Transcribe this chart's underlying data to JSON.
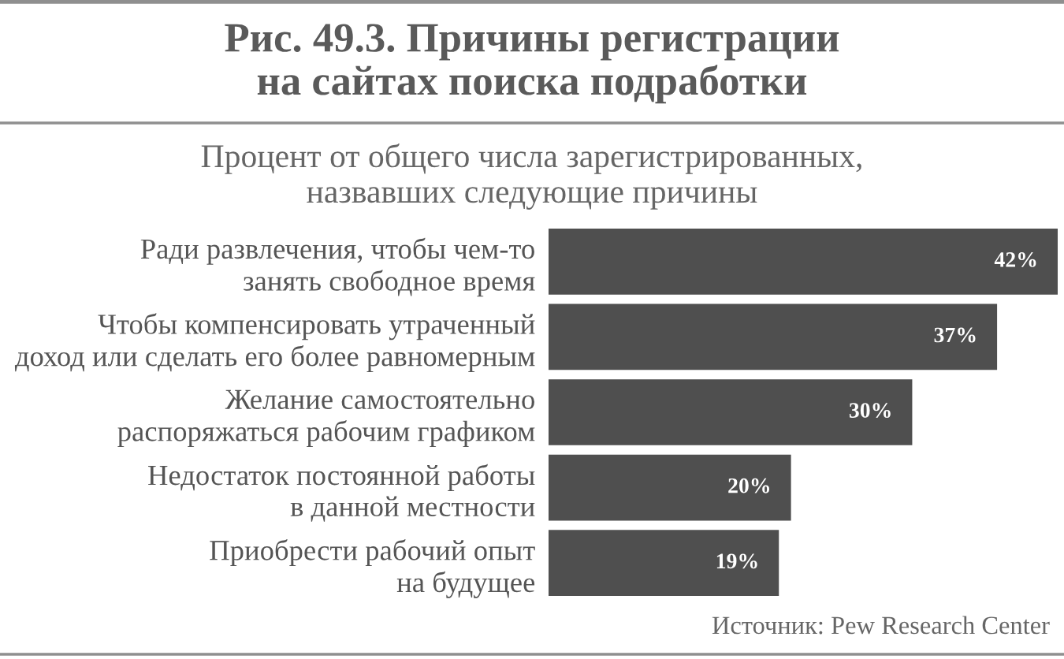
{
  "chart_data": {
    "type": "bar",
    "orientation": "horizontal",
    "title": "Рис. 49.3. Причины регистрации\nна сайтах поиска подработки",
    "subtitle": "Процент от общего числа зарегистрированных,\nназвавших следующие причины",
    "categories": [
      "Ради развлечения, чтобы чем-то\nзанять свободное время",
      "Чтобы компенсировать утраченный\nдоход или сделать его более равномерным",
      "Желание самостоятельно\nраспоряжаться рабочим графиком",
      "Недостаток постоянной работы\nв данной местности",
      "Приобрести рабочий опыт\nна будущее"
    ],
    "values": [
      42,
      37,
      30,
      20,
      19
    ],
    "value_labels": [
      "42%",
      "37%",
      "30%",
      "20%",
      "19%"
    ],
    "color": "#4f4f4f",
    "tick_labels": "y",
    "annotations": [
      "Источник: Pew Research Center"
    ]
  }
}
